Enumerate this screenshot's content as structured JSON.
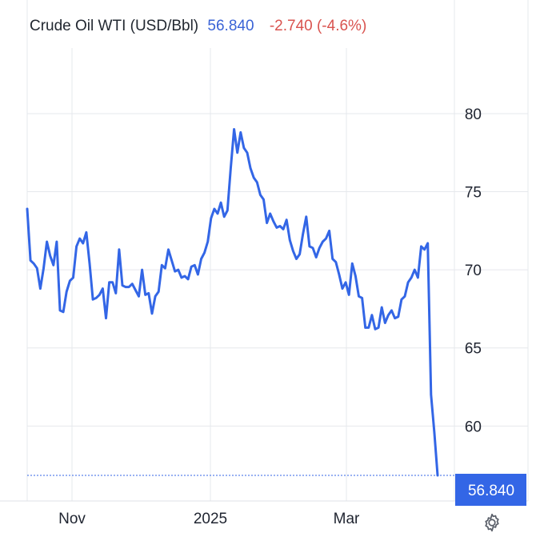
{
  "header": {
    "title": "Crude Oil WTI (USD/Bbl)",
    "price": "56.840",
    "change": "-2.740 (-4.6%)"
  },
  "colors": {
    "line": "#3366e6",
    "grid": "#e6e8ec",
    "price_badge": "#3366e6",
    "change_negative": "#d9534f"
  },
  "icons": {
    "settings": "gear-icon"
  },
  "chart_data": {
    "type": "line",
    "title": "Crude Oil WTI (USD/Bbl)",
    "x_ticks": [
      "Nov",
      "2025",
      "Mar"
    ],
    "y_ticks": [
      80,
      75,
      70,
      65,
      60
    ],
    "ylim": [
      55.2,
      84.2
    ],
    "grid": true,
    "last_value_label": "56.840",
    "series": [
      {
        "values": [
          73.9,
          70.6,
          70.4,
          70.1,
          68.8,
          70.1,
          71.8,
          70.9,
          70.3,
          71.8,
          67.4,
          67.3,
          68.6,
          69.3,
          69.5,
          71.5,
          72.0,
          71.7,
          72.4,
          70.4,
          68.1,
          68.2,
          68.4,
          68.8,
          66.9,
          69.2,
          69.2,
          68.5,
          71.3,
          69.0,
          68.9,
          68.9,
          69.1,
          68.7,
          68.3,
          70.0,
          68.4,
          68.5,
          67.2,
          68.3,
          68.6,
          70.3,
          70.1,
          71.3,
          70.6,
          69.9,
          70.0,
          69.5,
          69.6,
          69.4,
          70.2,
          70.3,
          69.7,
          70.7,
          71.1,
          71.8,
          73.3,
          73.9,
          73.6,
          74.3,
          73.4,
          73.8,
          76.5,
          79.0,
          77.5,
          78.8,
          77.8,
          77.5,
          76.5,
          75.9,
          75.6,
          74.8,
          74.5,
          73.0,
          73.6,
          73.1,
          72.7,
          72.8,
          72.6,
          73.2,
          71.9,
          71.2,
          70.7,
          71.0,
          72.3,
          73.4,
          71.5,
          71.4,
          70.8,
          71.4,
          71.8,
          72.0,
          72.5,
          70.7,
          70.5,
          69.7,
          68.8,
          69.2,
          68.4,
          70.4,
          69.6,
          68.3,
          68.2,
          66.3,
          66.3,
          67.1,
          66.2,
          66.3,
          67.6,
          66.6,
          67.1,
          67.4,
          66.9,
          67.0,
          68.1,
          68.3,
          69.2,
          69.5,
          70.0,
          69.5,
          71.5,
          71.3,
          71.7,
          62.0,
          59.6,
          56.84
        ]
      }
    ]
  }
}
